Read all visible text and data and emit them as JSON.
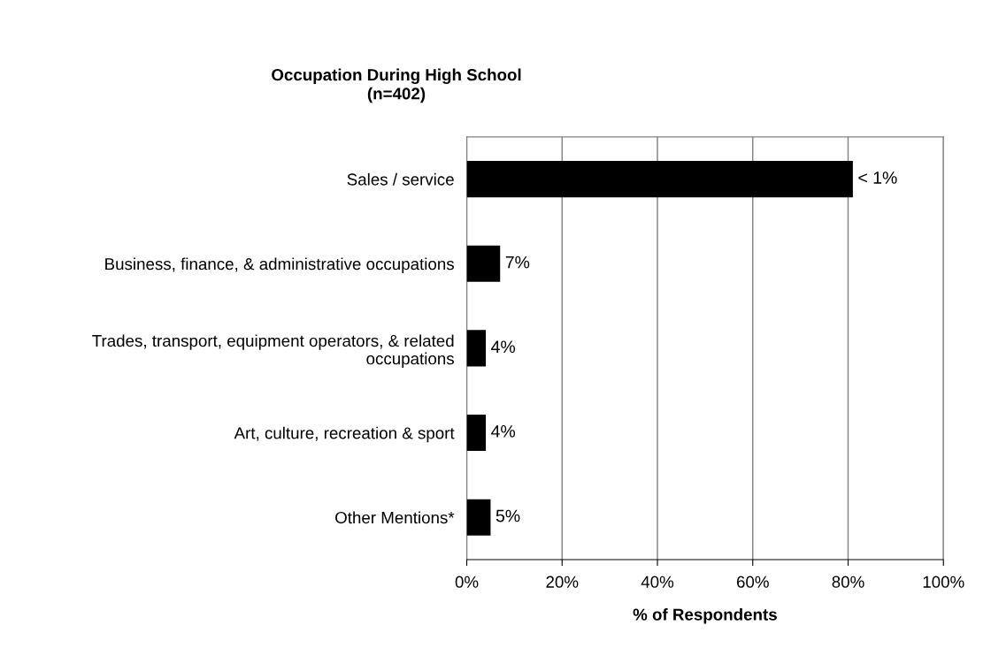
{
  "chart_data": {
    "type": "bar",
    "orientation": "horizontal",
    "title": "Occupation During High School",
    "subtitle": "(n=402)",
    "xlabel": "% of Respondents",
    "categories": [
      "Sales / service",
      "Business, finance, & administrative occupations",
      "Trades, transport, equipment operators, & related\noccupations",
      "Art, culture, recreation & sport",
      "Other Mentions*"
    ],
    "values": [
      81,
      7,
      4,
      4,
      5
    ],
    "value_labels": [
      "< 1%",
      "7%",
      "4%",
      "4%",
      "5%"
    ],
    "color": "#000000",
    "xlim": [
      0,
      100
    ],
    "xticks": [
      {
        "value": 0,
        "label": "0%"
      },
      {
        "value": 20,
        "label": "20%"
      },
      {
        "value": 40,
        "label": "40%"
      },
      {
        "value": 60,
        "label": "60%"
      },
      {
        "value": 80,
        "label": "80%"
      },
      {
        "value": 100,
        "label": "100%"
      }
    ],
    "grid": "x",
    "legend": false
  }
}
